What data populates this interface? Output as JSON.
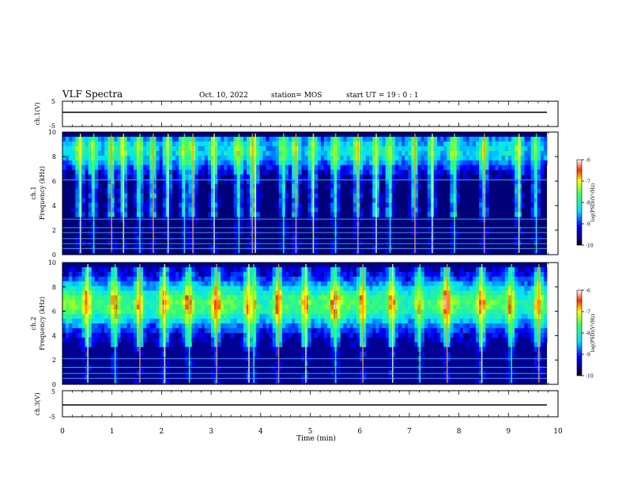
{
  "header": {
    "title": "VLF Spectra",
    "date": "Oct. 10, 2022",
    "station": "station= MOS",
    "start": "start  UT =   19 : 0   : 1"
  },
  "panels": {
    "ch1_wave_label": "ch.1(V)",
    "ch1_spec_label": "ch.1",
    "ch2_spec_label": "ch.2",
    "ch3_wave_label": "ch.3(V)",
    "freq_label": "Frequency (kHz)",
    "colorbar_label": "log(PSD)(V²/Hz)"
  },
  "chart_data": {
    "type": "heatmap",
    "title": "VLF Spectra",
    "xlabel": "Time (min)",
    "xlim": [
      0,
      10
    ],
    "x_ticks": [
      "0",
      "1",
      "2",
      "3",
      "4",
      "5",
      "6",
      "7",
      "8",
      "9",
      "10"
    ],
    "waveform_panels": [
      {
        "name": "ch.1(V)",
        "ylim": [
          -5,
          5
        ],
        "y_ticks": [
          "5",
          "-5"
        ],
        "level": -1.5
      },
      {
        "name": "ch.3(V)",
        "ylim": [
          -5,
          5
        ],
        "y_ticks": [
          "5",
          "-5"
        ],
        "level": -1.5
      }
    ],
    "spectrogram_panels": [
      {
        "name": "ch.1",
        "ylabel": "Frequency (kHz)",
        "ylim": [
          0,
          10
        ],
        "y_ticks": [
          "0",
          "2",
          "4",
          "6",
          "8",
          "10"
        ],
        "band_center_khz": 8.5,
        "band_width_khz": 1.6,
        "band_level": -8.2,
        "background_level": -9.7,
        "burst_times_min": [
          0.35,
          0.62,
          0.98,
          1.22,
          1.55,
          1.82,
          2.12,
          2.45,
          2.62,
          3.05,
          3.55,
          3.82,
          3.88,
          4.45,
          4.7,
          5.05,
          5.5,
          5.95,
          6.32,
          6.6,
          7.1,
          7.45,
          7.9,
          8.5,
          9.2,
          9.55
        ],
        "line_freqs_khz": [
          0.5,
          0.9,
          1.3,
          1.8,
          2.2,
          2.9,
          6.1
        ],
        "colorbar": {
          "ticks": [
            "-6",
            "-7",
            "-8",
            "-9",
            "-10"
          ],
          "range": [
            -10,
            -6
          ],
          "label": "log(PSD)(V²/Hz)"
        }
      },
      {
        "name": "ch.2",
        "ylabel": "Frequency (kHz)",
        "ylim": [
          0,
          10
        ],
        "y_ticks": [
          "0",
          "2",
          "4",
          "6",
          "8",
          "10"
        ],
        "band_center_khz": 6.6,
        "band_width_khz": 2.0,
        "band_level": -7.4,
        "background_level": -9.6,
        "burst_times_min": [
          0.5,
          1.05,
          1.55,
          2.05,
          2.55,
          3.1,
          3.75,
          3.85,
          4.35,
          4.9,
          5.5,
          6.05,
          6.65,
          7.2,
          7.75,
          8.45,
          9.05,
          9.6
        ],
        "line_freqs_khz": [
          0.5,
          0.9,
          1.4,
          2.1
        ],
        "colorbar": {
          "ticks": [
            "-6",
            "-7",
            "-8",
            "-9",
            "-10"
          ],
          "range": [
            -10,
            -6
          ],
          "label": "log(PSD)(V²/Hz)"
        }
      }
    ]
  }
}
